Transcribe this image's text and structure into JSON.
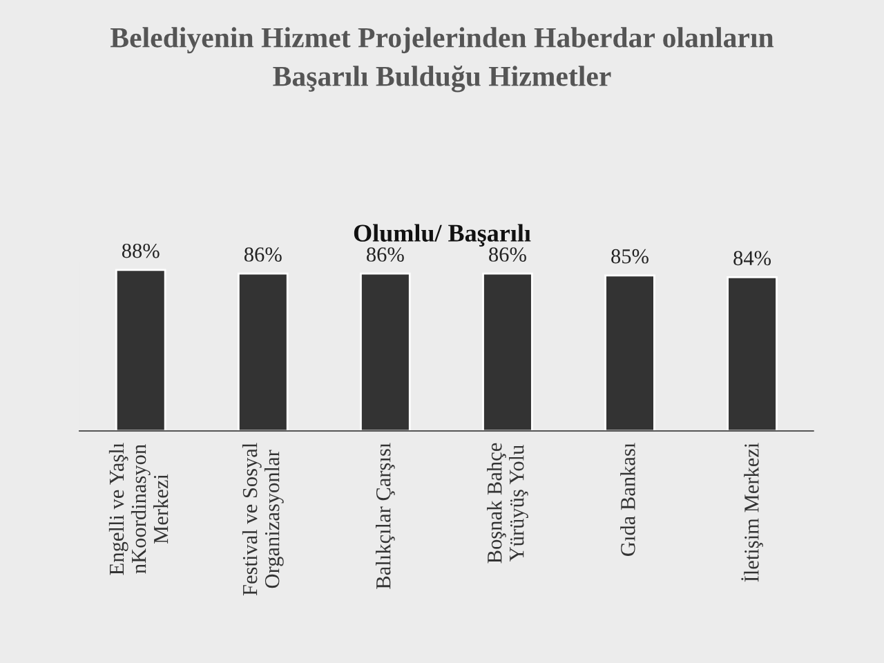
{
  "chart_data": {
    "type": "bar",
    "title": "Belediyenin Hizmet Projelerinden Haberdar olanların\nBaşarılı Bulduğu Hizmetler",
    "subtitle": "Olumlu/ Başarılı",
    "categories": [
      "Engelli ve Yaşlı\nnKoordinasyon\nMerkezi",
      "Festival ve Sosyal\nOrganizasyonlar",
      "Balıkçılar Çarşısı",
      "Boşnak Bahçe\nYürüyüş Yolu",
      "Gıda Bankası",
      "İletişim Merkezi"
    ],
    "values": [
      88,
      86,
      86,
      86,
      85,
      84
    ],
    "value_labels": [
      "88%",
      "86%",
      "86%",
      "86%",
      "85%",
      "84%"
    ],
    "color": "#333333",
    "tick_labels": "x",
    "grid": false,
    "legend": false
  }
}
